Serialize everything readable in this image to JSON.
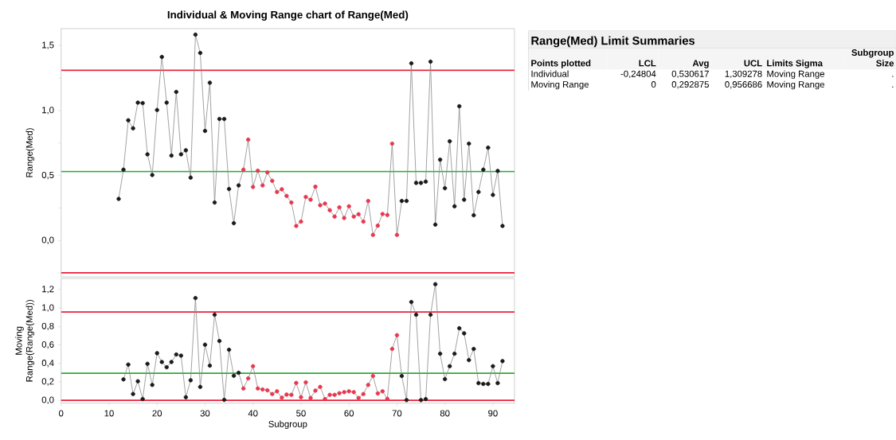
{
  "chart_data": [
    {
      "type": "line",
      "title": "Individual & Moving Range chart of Range(Med)",
      "ylabel": "Range(Med)",
      "marker": "circle",
      "tick_labels": "y",
      "xlim": [
        0,
        94.5
      ],
      "ylim": [
        -0.28,
        1.63
      ],
      "yticks": [
        {
          "value": -0.25,
          "label": null
        },
        {
          "value": 0,
          "label": "0,0"
        },
        {
          "value": 0.25,
          "label": null
        },
        {
          "value": 0.5,
          "label": "0,5"
        },
        {
          "value": 0.75,
          "label": null
        },
        {
          "value": 1,
          "label": "1,0"
        },
        {
          "value": 1.25,
          "label": null
        },
        {
          "value": 1.5,
          "label": "1,5"
        }
      ],
      "ref_lines": [
        {
          "axis": "y",
          "value": 1.309278,
          "color": "#e8203a"
        },
        {
          "axis": "y",
          "value": 0.530617,
          "color": "#2eaa3a"
        },
        {
          "axis": "y",
          "value": -0.24804,
          "color": "#e8203a"
        }
      ],
      "series": [
        {
          "color": "#8c8c8c",
          "x": [
            12,
            13,
            14,
            15,
            16,
            17,
            18,
            19,
            20,
            21,
            22,
            23,
            24,
            25,
            26,
            27,
            28,
            29,
            30,
            31,
            32,
            33,
            34,
            35,
            36,
            37,
            38,
            39,
            40,
            41,
            42,
            43,
            44,
            45,
            46,
            47,
            48,
            49,
            50,
            51,
            52,
            53,
            54,
            55,
            56,
            57,
            58,
            59,
            60,
            61,
            62,
            63,
            64,
            65,
            66,
            67,
            68,
            69,
            70,
            71,
            72,
            73,
            74,
            75,
            76,
            77,
            78,
            79,
            80,
            81,
            82,
            83,
            84,
            85,
            86,
            87,
            88,
            89,
            90,
            91,
            92
          ],
          "values": [
            0.32,
            0.545,
            0.925,
            0.863,
            1.061,
            1.057,
            0.663,
            0.504,
            1.004,
            1.412,
            1.061,
            0.653,
            1.143,
            0.663,
            0.694,
            0.484,
            1.584,
            1.443,
            0.843,
            1.214,
            0.292,
            0.935,
            0.935,
            0.396,
            0.133,
            0.424,
            0.545,
            0.776,
            0.412,
            0.537,
            0.424,
            0.524,
            0.459,
            0.373,
            0.394,
            0.343,
            0.292,
            0.112,
            0.145,
            0.335,
            0.314,
            0.414,
            0.271,
            0.284,
            0.233,
            0.184,
            0.255,
            0.173,
            0.263,
            0.184,
            0.202,
            0.145,
            0.304,
            0.043,
            0.114,
            0.204,
            0.196,
            0.745,
            0.043,
            0.304,
            0.304,
            1.363,
            0.443,
            0.443,
            0.453,
            1.376,
            0.122,
            0.622,
            0.402,
            0.763,
            0.263,
            1.033,
            0.314,
            0.745,
            0.194,
            0.373,
            0.545,
            0.714,
            0.351,
            0.535,
            0.112
          ],
          "colors": [
            "#1a1a1a",
            "#1a1a1a",
            "#1a1a1a",
            "#1a1a1a",
            "#1a1a1a",
            "#1a1a1a",
            "#1a1a1a",
            "#1a1a1a",
            "#1a1a1a",
            "#1a1a1a",
            "#1a1a1a",
            "#1a1a1a",
            "#1a1a1a",
            "#1a1a1a",
            "#1a1a1a",
            "#1a1a1a",
            "#1a1a1a",
            "#1a1a1a",
            "#1a1a1a",
            "#1a1a1a",
            "#1a1a1a",
            "#1a1a1a",
            "#1a1a1a",
            "#1a1a1a",
            "#1a1a1a",
            "#1a1a1a",
            "#e8384f",
            "#e8384f",
            "#e8384f",
            "#e8384f",
            "#e8384f",
            "#e8384f",
            "#e8384f",
            "#e8384f",
            "#e8384f",
            "#e8384f",
            "#e8384f",
            "#e8384f",
            "#e8384f",
            "#e8384f",
            "#e8384f",
            "#e8384f",
            "#e8384f",
            "#e8384f",
            "#e8384f",
            "#e8384f",
            "#e8384f",
            "#e8384f",
            "#e8384f",
            "#e8384f",
            "#e8384f",
            "#e8384f",
            "#e8384f",
            "#e8384f",
            "#e8384f",
            "#e8384f",
            "#e8384f",
            "#e8384f",
            "#e8384f",
            "#1a1a1a",
            "#1a1a1a",
            "#1a1a1a",
            "#1a1a1a",
            "#1a1a1a",
            "#1a1a1a",
            "#1a1a1a",
            "#1a1a1a",
            "#1a1a1a",
            "#1a1a1a",
            "#1a1a1a",
            "#1a1a1a",
            "#1a1a1a",
            "#1a1a1a",
            "#1a1a1a",
            "#1a1a1a",
            "#1a1a1a",
            "#1a1a1a",
            "#1a1a1a",
            "#1a1a1a",
            "#1a1a1a",
            "#1a1a1a"
          ]
        }
      ]
    },
    {
      "type": "line",
      "xlabel": "Subgroup",
      "ylabel": "Moving Range(Range(Med))",
      "marker": "circle",
      "xlim": [
        0,
        94.5
      ],
      "ylim": [
        -0.03,
        1.32
      ],
      "xticks": [
        0,
        10,
        20,
        30,
        40,
        50,
        60,
        70,
        80,
        90
      ],
      "yticks": [
        {
          "value": 0,
          "label": "0,0"
        },
        {
          "value": 0.2,
          "label": "0,2"
        },
        {
          "value": 0.4,
          "label": "0,4"
        },
        {
          "value": 0.6,
          "label": "0,6"
        },
        {
          "value": 0.8,
          "label": "0,8"
        },
        {
          "value": 1,
          "label": "1,0"
        },
        {
          "value": 1.2,
          "label": "1,2"
        }
      ],
      "ref_lines": [
        {
          "axis": "y",
          "value": 0.956686,
          "color": "#e8203a"
        },
        {
          "axis": "y",
          "value": 0.292875,
          "color": "#2eaa3a"
        },
        {
          "axis": "y",
          "value": 0,
          "color": "#e8203a"
        }
      ],
      "series": [
        {
          "color": "#8c8c8c",
          "x": [
            13,
            14,
            15,
            16,
            17,
            18,
            19,
            20,
            21,
            22,
            23,
            24,
            25,
            26,
            27,
            28,
            29,
            30,
            31,
            32,
            33,
            34,
            35,
            36,
            37,
            38,
            39,
            40,
            41,
            42,
            43,
            44,
            45,
            46,
            47,
            48,
            49,
            50,
            51,
            52,
            53,
            54,
            55,
            56,
            57,
            58,
            59,
            60,
            61,
            62,
            63,
            64,
            65,
            66,
            67,
            68,
            69,
            70,
            71,
            72,
            73,
            74,
            75,
            76,
            77,
            78,
            79,
            80,
            81,
            82,
            83,
            84,
            85,
            86,
            87,
            88,
            89,
            90,
            91,
            92
          ],
          "values": [
            0.227,
            0.388,
            0.069,
            0.207,
            0.014,
            0.396,
            0.167,
            0.511,
            0.416,
            0.359,
            0.416,
            0.497,
            0.485,
            0.034,
            0.218,
            1.108,
            0.146,
            0.603,
            0.376,
            0.927,
            0.643,
            0.006,
            0.548,
            0.267,
            0.299,
            0.129,
            0.238,
            0.37,
            0.129,
            0.118,
            0.109,
            0.069,
            0.098,
            0.029,
            0.063,
            0.06,
            0.189,
            0.034,
            0.195,
            0.026,
            0.106,
            0.146,
            0.014,
            0.06,
            0.06,
            0.078,
            0.089,
            0.098,
            0.089,
            0.026,
            0.069,
            0.167,
            0.264,
            0.075,
            0.098,
            0.017,
            0.557,
            0.706,
            0.264,
            0.003,
            1.065,
            0.927,
            0.003,
            0.014,
            0.927,
            1.258,
            0.505,
            0.23,
            0.37,
            0.505,
            0.781,
            0.726,
            0.436,
            0.557,
            0.187,
            0.178,
            0.178,
            0.37,
            0.187,
            0.425
          ],
          "colors": [
            "#1a1a1a",
            "#1a1a1a",
            "#1a1a1a",
            "#1a1a1a",
            "#1a1a1a",
            "#1a1a1a",
            "#1a1a1a",
            "#1a1a1a",
            "#1a1a1a",
            "#1a1a1a",
            "#1a1a1a",
            "#1a1a1a",
            "#1a1a1a",
            "#1a1a1a",
            "#1a1a1a",
            "#1a1a1a",
            "#1a1a1a",
            "#1a1a1a",
            "#1a1a1a",
            "#1a1a1a",
            "#1a1a1a",
            "#1a1a1a",
            "#1a1a1a",
            "#1a1a1a",
            "#1a1a1a",
            "#e8384f",
            "#e8384f",
            "#e8384f",
            "#e8384f",
            "#e8384f",
            "#e8384f",
            "#e8384f",
            "#e8384f",
            "#e8384f",
            "#e8384f",
            "#e8384f",
            "#e8384f",
            "#e8384f",
            "#e8384f",
            "#e8384f",
            "#e8384f",
            "#e8384f",
            "#e8384f",
            "#e8384f",
            "#e8384f",
            "#e8384f",
            "#e8384f",
            "#e8384f",
            "#e8384f",
            "#e8384f",
            "#e8384f",
            "#e8384f",
            "#e8384f",
            "#e8384f",
            "#e8384f",
            "#e8384f",
            "#e8384f",
            "#e8384f",
            "#1a1a1a",
            "#1a1a1a",
            "#1a1a1a",
            "#1a1a1a",
            "#1a1a1a",
            "#1a1a1a",
            "#1a1a1a",
            "#1a1a1a",
            "#1a1a1a",
            "#1a1a1a",
            "#1a1a1a",
            "#1a1a1a",
            "#1a1a1a",
            "#1a1a1a",
            "#1a1a1a",
            "#1a1a1a",
            "#1a1a1a",
            "#1a1a1a",
            "#1a1a1a",
            "#1a1a1a",
            "#1a1a1a",
            "#1a1a1a"
          ]
        }
      ]
    },
    {
      "type": "other",
      "title": "Range(Med) Limit Summaries",
      "categories": [
        "Points plotted",
        "LCL",
        "Avg",
        "UCL",
        "Limits Sigma",
        "Subgroup Size"
      ],
      "annotations": [
        "Individual",
        "-0,24804",
        "0,530617",
        "1,309278",
        "Moving Range",
        ".",
        "Moving Range",
        "0",
        "0,292875",
        "0,956686",
        "Moving Range",
        "."
      ]
    }
  ]
}
